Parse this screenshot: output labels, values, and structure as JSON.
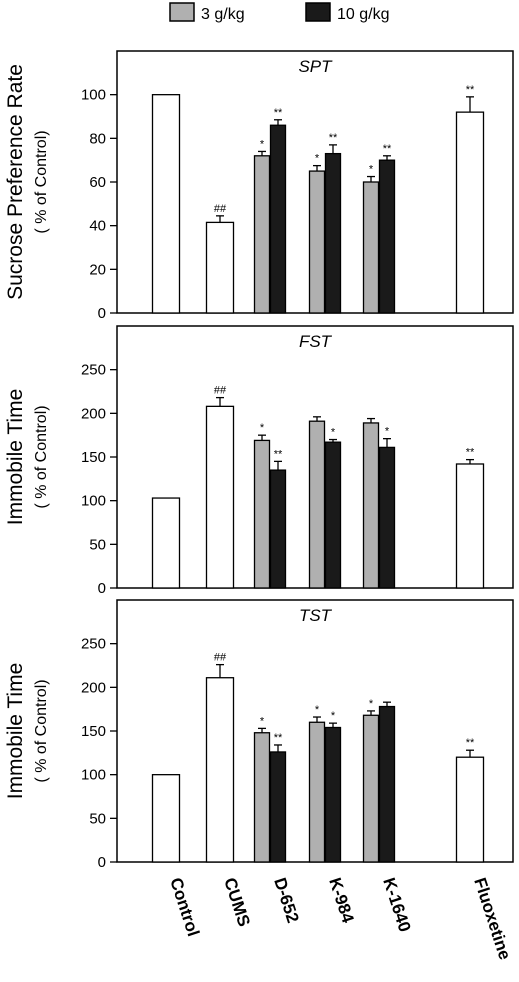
{
  "legend": [
    {
      "label": "3 g/kg",
      "color": "#b0b0b0"
    },
    {
      "label": "10 g/kg",
      "color": "#1a1a1a"
    }
  ],
  "colors": {
    "single": "#ffffff",
    "low_dose": "#b0b0b0",
    "high_dose": "#1a1a1a",
    "stroke": "#000000"
  },
  "chart_data": [
    {
      "type": "bar",
      "title": "SPT",
      "ylabel": "Sucrose Preference Rate",
      "ylabel_sub": "( % of Control)",
      "ylim": [
        0,
        120
      ],
      "yticks": [
        0,
        20,
        40,
        60,
        80,
        100
      ],
      "categories": [
        "Control",
        "CUMS",
        "D-652",
        "K-984",
        "K-1640",
        "Fluoxetine"
      ],
      "series": [
        {
          "name": "3 g/kg",
          "values": [
            100,
            41.5,
            72,
            65,
            60,
            92
          ],
          "errors": [
            0,
            3,
            2,
            2.5,
            2.5,
            7
          ],
          "sig": [
            "",
            "##",
            "*",
            "*",
            "*",
            "**"
          ]
        },
        {
          "name": "10 g/kg",
          "values": [
            null,
            null,
            86,
            73,
            70,
            null
          ],
          "errors": [
            null,
            null,
            2.5,
            4,
            2,
            null
          ],
          "sig": [
            "",
            "",
            "**",
            "**",
            "**",
            ""
          ]
        }
      ]
    },
    {
      "type": "bar",
      "title": "FST",
      "ylabel": "Immobile Time",
      "ylabel_sub": "( % of Control)",
      "ylim": [
        0,
        300
      ],
      "yticks": [
        0,
        50,
        100,
        150,
        200,
        250
      ],
      "categories": [
        "Control",
        "CUMS",
        "D-652",
        "K-984",
        "K-1640",
        "Fluoxetine"
      ],
      "series": [
        {
          "name": "3 g/kg",
          "values": [
            103,
            208,
            169,
            191,
            189,
            142
          ],
          "errors": [
            0,
            10,
            6,
            5,
            5,
            5
          ],
          "sig": [
            "",
            "##",
            "*",
            "",
            "",
            "**"
          ]
        },
        {
          "name": "10 g/kg",
          "values": [
            null,
            null,
            135,
            167,
            161,
            null
          ],
          "errors": [
            null,
            null,
            10,
            3,
            10,
            null
          ],
          "sig": [
            "",
            "",
            "**",
            "*",
            "*",
            ""
          ]
        }
      ]
    },
    {
      "type": "bar",
      "title": "TST",
      "ylabel": "Immobile Time",
      "ylabel_sub": "( % of Control)",
      "ylim": [
        0,
        300
      ],
      "yticks": [
        0,
        50,
        100,
        150,
        200,
        250
      ],
      "categories": [
        "Control",
        "CUMS",
        "D-652",
        "K-984",
        "K-1640",
        "Fluoxetine"
      ],
      "series": [
        {
          "name": "3 g/kg",
          "values": [
            100,
            211,
            148,
            160,
            168,
            120
          ],
          "errors": [
            0,
            15,
            5,
            6,
            5,
            8
          ],
          "sig": [
            "",
            "##",
            "*",
            "*",
            "*",
            "**"
          ]
        },
        {
          "name": "10 g/kg",
          "values": [
            null,
            null,
            126,
            154,
            178,
            null
          ],
          "errors": [
            null,
            null,
            8,
            5,
            5,
            null
          ],
          "sig": [
            "",
            "",
            "**",
            "*",
            "",
            ""
          ]
        }
      ]
    }
  ]
}
